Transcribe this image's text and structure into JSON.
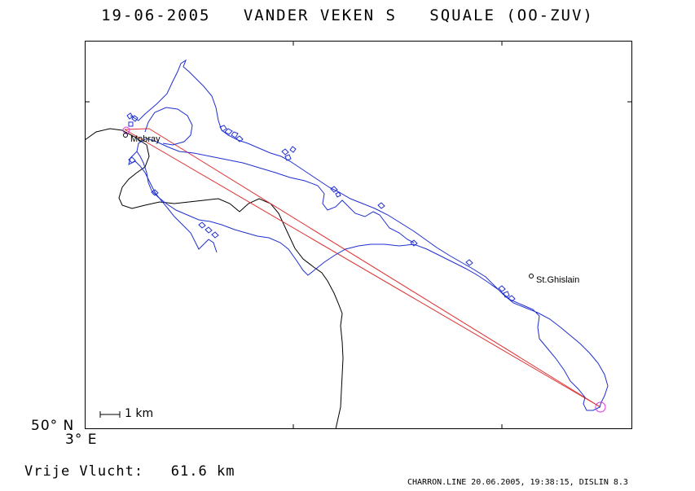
{
  "title": "19-06-2005   VANDER VEKEN S   SQUALE (OO-ZUV)",
  "axis": {
    "lat_label": "50° N",
    "lon_label": "3° E"
  },
  "places": [
    {
      "name": "Mobray"
    },
    {
      "name": "St.Ghislain"
    }
  ],
  "scale": {
    "label": "1 km"
  },
  "distance": {
    "label": "Vrije Vlucht:",
    "value": "61.6 km"
  },
  "footer": "CHARRON.LINE 20.06.2005, 19:38:15, DISLIN 8.3",
  "colors": {
    "track": "#1f2fd0",
    "task": "#e03030",
    "turnpoint": "#e030e0",
    "border": "#000000"
  }
}
